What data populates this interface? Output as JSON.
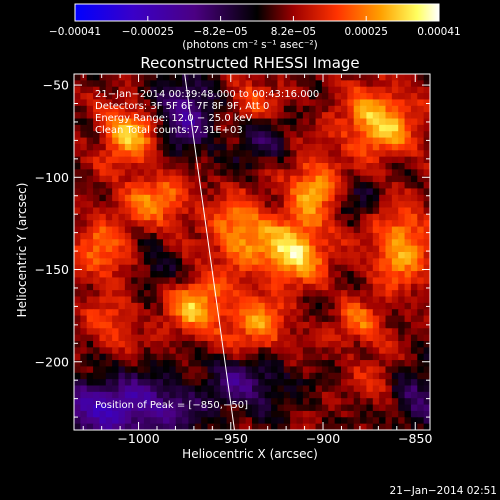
{
  "chart_data": {
    "type": "heatmap",
    "title": "Reconstructed RHESSI Image",
    "xlabel": "Heliocentric X (arcsec)",
    "ylabel": "Heliocentric Y (arcsec)",
    "xlim": [
      -1035,
      -842
    ],
    "ylim": [
      -237,
      -44
    ],
    "x_ticks": [
      -1000,
      -950,
      -900,
      -850
    ],
    "x_tick_labels": [
      "−1000",
      "−950",
      "−900",
      "−850"
    ],
    "y_ticks": [
      -50,
      -100,
      -150,
      -200
    ],
    "y_tick_labels": [
      "−50",
      "−100",
      "−150",
      "−200"
    ],
    "colorbar": {
      "range": [
        -0.00041,
        0.00041
      ],
      "tick_labels": [
        "−0.00041",
        "−0.00025",
        "−8.2e−05",
        "8.2e−05",
        "0.00025",
        "0.00041"
      ],
      "unit_label": "(photons cm⁻² s⁻¹ asec⁻²)",
      "colors": [
        "#0000ff",
        "#4b0082",
        "#000000",
        "#9c0000",
        "#ff3300",
        "#ffa000",
        "#ffff60",
        "#ffffff"
      ]
    },
    "limb_line": {
      "color": "#ffffff",
      "points": [
        [
          -975,
          -44
        ],
        [
          -948,
          -237
        ]
      ]
    },
    "annotations": [
      "21−Jan−2014 00:39:48.000 to 00:43:16.000",
      "Detectors: 3F 5F 6F 7F 8F 9F, Att 0",
      "Energy Range: 12.0 − 25.0 keV",
      "Clean    Total counts: 7.31E+03"
    ],
    "peak_label": "Position of Peak = [−850,−50]",
    "timestamp": "21−Jan−2014 02:51",
    "hotspots": [
      {
        "x": -1005,
        "y": -77,
        "sx": 11,
        "sy": 11,
        "a": 0.9
      },
      {
        "x": -990,
        "y": -112,
        "sx": 13,
        "sy": 10,
        "a": 0.7
      },
      {
        "x": -1020,
        "y": -140,
        "sx": 11,
        "sy": 13,
        "a": 0.6
      },
      {
        "x": -1015,
        "y": -180,
        "sx": 10,
        "sy": 10,
        "a": 0.45
      },
      {
        "x": -968,
        "y": -170,
        "sx": 12,
        "sy": 11,
        "a": 0.85
      },
      {
        "x": -945,
        "y": -130,
        "sx": 12,
        "sy": 14,
        "a": 0.75
      },
      {
        "x": -935,
        "y": -180,
        "sx": 11,
        "sy": 12,
        "a": 0.7
      },
      {
        "x": -915,
        "y": -140,
        "sx": 12,
        "sy": 12,
        "a": 1.05
      },
      {
        "x": -905,
        "y": -105,
        "sx": 10,
        "sy": 12,
        "a": 0.8
      },
      {
        "x": -870,
        "y": -70,
        "sx": 14,
        "sy": 13,
        "a": 0.95
      },
      {
        "x": -858,
        "y": -138,
        "sx": 11,
        "sy": 15,
        "a": 0.85
      },
      {
        "x": -880,
        "y": -180,
        "sx": 10,
        "sy": 9,
        "a": 0.55
      },
      {
        "x": -940,
        "y": -60,
        "sx": 10,
        "sy": 9,
        "a": 0.5
      },
      {
        "x": -870,
        "y": -210,
        "sx": 9,
        "sy": 9,
        "a": 0.35
      }
    ],
    "coldspots": [
      {
        "x": -975,
        "y": -65,
        "sx": 12,
        "sy": 14,
        "a": 0.9
      },
      {
        "x": -1010,
        "y": -225,
        "sx": 30,
        "sy": 12,
        "a": 1.1
      },
      {
        "x": -940,
        "y": -210,
        "sx": 14,
        "sy": 10,
        "a": 0.7
      },
      {
        "x": -935,
        "y": -80,
        "sx": 10,
        "sy": 10,
        "a": 0.5
      },
      {
        "x": -850,
        "y": -220,
        "sx": 10,
        "sy": 12,
        "a": 0.6
      },
      {
        "x": -990,
        "y": -150,
        "sx": 8,
        "sy": 8,
        "a": 0.4
      },
      {
        "x": -880,
        "y": -110,
        "sx": 8,
        "sy": 8,
        "a": 0.35
      }
    ]
  }
}
